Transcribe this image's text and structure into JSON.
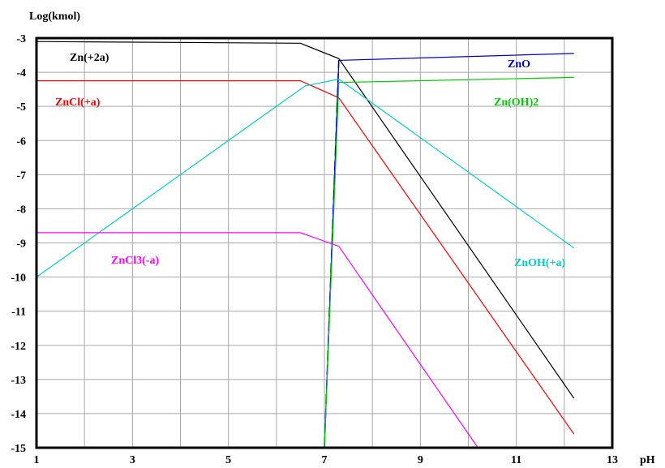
{
  "chart_data": {
    "type": "line",
    "title": "",
    "xlabel": "pH",
    "ylabel": "Log(kmol)",
    "xlim": [
      1,
      13
    ],
    "ylim": [
      -15,
      -3
    ],
    "x_ticks": [
      1,
      3,
      5,
      7,
      9,
      11,
      13
    ],
    "y_ticks": [
      -3,
      -4,
      -5,
      -6,
      -7,
      -8,
      -9,
      -10,
      -11,
      -12,
      -13,
      -14,
      -15
    ],
    "grid": true,
    "legend": "inline labels",
    "series": [
      {
        "name": "Zn(+2a)",
        "color": "#000000",
        "points": [
          [
            1,
            -3.1
          ],
          [
            6.5,
            -3.15
          ],
          [
            7.3,
            -3.6
          ],
          [
            12.2,
            -13.55
          ]
        ]
      },
      {
        "name": "ZnCl(+a)",
        "color": "#ff0000",
        "points": [
          [
            1,
            -4.25
          ],
          [
            6.5,
            -4.25
          ],
          [
            7.3,
            -4.75
          ],
          [
            12.2,
            -14.6
          ]
        ]
      },
      {
        "name": "ZnO",
        "color": "#0000cc",
        "points": [
          [
            7.0,
            -15.0
          ],
          [
            7.3,
            -3.65
          ],
          [
            12.2,
            -3.45
          ]
        ]
      },
      {
        "name": "Zn(OH)2",
        "color": "#00cc00",
        "points": [
          [
            7.0,
            -15.0
          ],
          [
            7.3,
            -4.3
          ],
          [
            12.2,
            -4.15
          ]
        ]
      },
      {
        "name": "ZnOH(+a)",
        "color": "#00cccc",
        "points": [
          [
            1,
            -10.0
          ],
          [
            6.6,
            -4.4
          ],
          [
            7.3,
            -4.2
          ],
          [
            12.2,
            -9.15
          ]
        ]
      },
      {
        "name": "ZnCl3(-a)",
        "color": "#ff00ff",
        "points": [
          [
            1,
            -8.7
          ],
          [
            6.5,
            -8.7
          ],
          [
            7.3,
            -9.1
          ],
          [
            10.2,
            -15.0
          ]
        ]
      }
    ]
  }
}
